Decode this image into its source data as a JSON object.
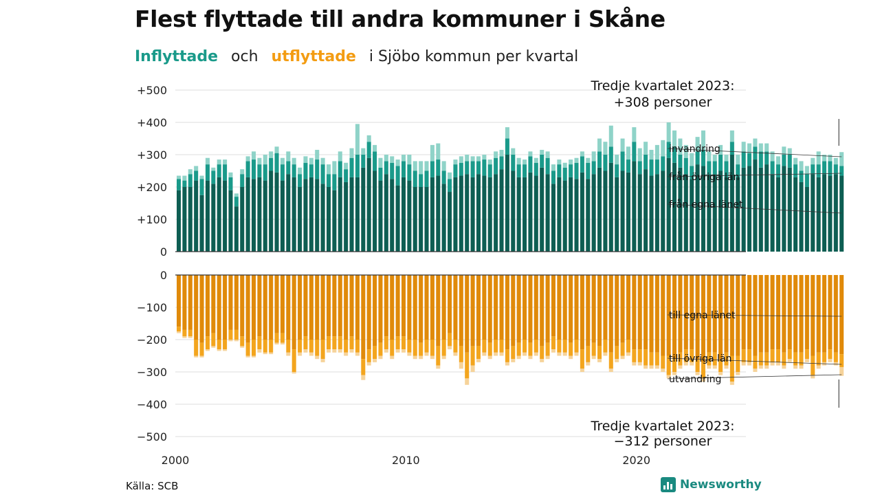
{
  "title": "Flest flyttade till andra kommuner i Skåne",
  "subtitle": {
    "inflow_word": "Inflyttade",
    "connector": "och",
    "outflow_word": "utflyttade",
    "rest": "i Sjöbo  kommun  per  kvartal"
  },
  "source": "Källa: SCB",
  "logo_text": "Newsworthy",
  "colors": {
    "in_own": "#0e5e53",
    "in_other": "#1a9a8a",
    "in_abroad": "#8fd3c8",
    "out_own": "#e08a0a",
    "out_other": "#f3a51e",
    "out_abroad": "#f6d39a",
    "grid": "#dddddd",
    "axis": "#333333"
  },
  "chart_data": {
    "type": "bar",
    "stacked": true,
    "x_start": 2000,
    "periods_per_year": 4,
    "xticks": [
      2000,
      2010,
      2020
    ],
    "xtick_labels": [
      "2000",
      "2010",
      "2020"
    ],
    "top_panel": {
      "ylim": [
        0,
        500
      ],
      "yticks": [
        0,
        100,
        200,
        300,
        400,
        500
      ],
      "ytick_labels": [
        "0",
        "+100",
        "+200",
        "+300",
        "+400",
        "+500"
      ],
      "annotation": [
        "Tredje kvartalet 2023:",
        "+308 personer"
      ],
      "series": [
        {
          "name": "från egna länet",
          "values": [
            190,
            200,
            200,
            220,
            175,
            220,
            210,
            230,
            220,
            190,
            140,
            200,
            230,
            225,
            230,
            220,
            250,
            245,
            220,
            240,
            230,
            200,
            225,
            230,
            225,
            210,
            200,
            190,
            230,
            215,
            230,
            230,
            260,
            290,
            250,
            220,
            240,
            225,
            205,
            230,
            220,
            200,
            200,
            200,
            230,
            235,
            210,
            185,
            230,
            235,
            240,
            230,
            240,
            235,
            230,
            240,
            255,
            300,
            250,
            230,
            230,
            245,
            235,
            260,
            240,
            210,
            230,
            220,
            230,
            225,
            245,
            225,
            240,
            260,
            250,
            275,
            230,
            250,
            245,
            280,
            240,
            255,
            235,
            240,
            250,
            290,
            275,
            260,
            240,
            225,
            270,
            265,
            240,
            240,
            250,
            230,
            300,
            230,
            260,
            265,
            285,
            260,
            270,
            240,
            230,
            265,
            260,
            230,
            215,
            200,
            240,
            230,
            240,
            235,
            240,
            235
          ]
        },
        {
          "name": "från övriga län",
          "values": [
            35,
            20,
            40,
            30,
            50,
            50,
            40,
            40,
            50,
            40,
            30,
            40,
            50,
            60,
            40,
            50,
            40,
            60,
            50,
            40,
            40,
            40,
            50,
            40,
            60,
            60,
            40,
            50,
            50,
            40,
            60,
            70,
            40,
            50,
            60,
            40,
            40,
            50,
            60,
            50,
            50,
            50,
            40,
            50,
            50,
            50,
            40,
            40,
            40,
            40,
            40,
            50,
            40,
            50,
            40,
            50,
            40,
            50,
            50,
            40,
            40,
            50,
            40,
            40,
            50,
            40,
            40,
            40,
            40,
            50,
            50,
            50,
            40,
            50,
            50,
            50,
            40,
            60,
            40,
            60,
            40,
            45,
            50,
            45,
            45,
            50,
            50,
            40,
            50,
            40,
            40,
            50,
            40,
            40,
            50,
            50,
            40,
            40,
            50,
            40,
            40,
            50,
            40,
            40,
            40,
            35,
            40,
            40,
            35,
            40,
            30,
            40,
            40,
            45,
            30,
            30
          ]
        },
        {
          "name": "invandring",
          "values": [
            10,
            15,
            15,
            15,
            10,
            20,
            10,
            15,
            15,
            15,
            10,
            15,
            15,
            25,
            20,
            30,
            20,
            20,
            20,
            30,
            20,
            20,
            20,
            20,
            30,
            20,
            30,
            40,
            30,
            20,
            30,
            95,
            20,
            20,
            20,
            30,
            20,
            20,
            20,
            20,
            30,
            30,
            40,
            30,
            50,
            50,
            30,
            20,
            15,
            20,
            20,
            15,
            15,
            15,
            15,
            20,
            20,
            35,
            20,
            20,
            15,
            15,
            15,
            15,
            20,
            20,
            15,
            15,
            15,
            15,
            15,
            15,
            30,
            40,
            40,
            65,
            30,
            40,
            40,
            45,
            40,
            40,
            30,
            45,
            50,
            60,
            50,
            50,
            40,
            40,
            45,
            60,
            30,
            20,
            30,
            20,
            35,
            30,
            30,
            30,
            25,
            25,
            25,
            30,
            25,
            25,
            20,
            20,
            30,
            25,
            20,
            40,
            20,
            20,
            20,
            43
          ]
        }
      ],
      "series_labels": [
        "invandring",
        "från övriga län",
        "från egna länet"
      ]
    },
    "bottom_panel": {
      "ylim": [
        -500,
        0
      ],
      "yticks": [
        0,
        -100,
        -200,
        -300,
        -400,
        -500
      ],
      "ytick_labels": [
        "0",
        "−100",
        "−200",
        "−300",
        "−400",
        "−500"
      ],
      "annotation": [
        "Tredje kvartalet 2023:",
        "−312 personer"
      ],
      "series": [
        {
          "name": "till egna länet",
          "values": [
            -160,
            -170,
            -170,
            -200,
            -210,
            -190,
            -180,
            -200,
            -200,
            -170,
            -170,
            -190,
            -210,
            -200,
            -190,
            -200,
            -200,
            -180,
            -180,
            -200,
            -230,
            -200,
            -190,
            -200,
            -200,
            -200,
            -190,
            -190,
            -190,
            -200,
            -190,
            -200,
            -260,
            -230,
            -220,
            -210,
            -190,
            -200,
            -190,
            -190,
            -200,
            -200,
            -210,
            -200,
            -200,
            -220,
            -200,
            -180,
            -200,
            -220,
            -240,
            -220,
            -220,
            -200,
            -210,
            -200,
            -200,
            -230,
            -220,
            -210,
            -200,
            -210,
            -200,
            -220,
            -210,
            -190,
            -200,
            -200,
            -210,
            -200,
            -230,
            -220,
            -210,
            -220,
            -200,
            -240,
            -220,
            -210,
            -200,
            -230,
            -230,
            -230,
            -240,
            -240,
            -250,
            -250,
            -260,
            -240,
            -230,
            -230,
            -260,
            -270,
            -240,
            -240,
            -260,
            -240,
            -250,
            -250,
            -230,
            -230,
            -250,
            -240,
            -240,
            -230,
            -230,
            -240,
            -230,
            -240,
            -240,
            -230,
            -250,
            -240,
            -240,
            -230,
            -240,
            -245
          ]
        },
        {
          "name": "till övriga län",
          "values": [
            -15,
            -20,
            -20,
            -50,
            -40,
            -40,
            -40,
            -30,
            -30,
            -30,
            -30,
            -30,
            -40,
            -50,
            -40,
            -40,
            -40,
            -30,
            -30,
            -40,
            -70,
            -40,
            -40,
            -40,
            -50,
            -60,
            -40,
            -40,
            -40,
            -40,
            -40,
            -40,
            -50,
            -40,
            -40,
            -40,
            -40,
            -50,
            -40,
            -40,
            -40,
            -50,
            -40,
            -40,
            -50,
            -60,
            -50,
            -40,
            -40,
            -50,
            -80,
            -60,
            -40,
            -40,
            -40,
            -40,
            -40,
            -40,
            -40,
            -40,
            -40,
            -40,
            -40,
            -40,
            -40,
            -40,
            -40,
            -40,
            -40,
            -40,
            -60,
            -50,
            -40,
            -40,
            -40,
            -50,
            -40,
            -40,
            -40,
            -40,
            -40,
            -50,
            -40,
            -40,
            -40,
            -60,
            -40,
            -40,
            -40,
            -40,
            -40,
            -50,
            -40,
            -40,
            -40,
            -40,
            -80,
            -50,
            -40,
            -40,
            -40,
            -40,
            -40,
            -40,
            -40,
            -40,
            -30,
            -40,
            -40,
            -30,
            -60,
            -40,
            -30,
            -30,
            -30,
            -40
          ]
        },
        {
          "name": "utvandring",
          "values": [
            -5,
            -5,
            -5,
            -5,
            -5,
            -5,
            -5,
            -5,
            -5,
            -5,
            -5,
            -5,
            -5,
            -5,
            -10,
            -5,
            -5,
            -5,
            -5,
            -10,
            -5,
            -10,
            -10,
            -10,
            -10,
            -10,
            -10,
            -10,
            -10,
            -10,
            -10,
            -10,
            -15,
            -10,
            -10,
            -10,
            -10,
            -10,
            -10,
            -10,
            -10,
            -10,
            -10,
            -10,
            -10,
            -10,
            -10,
            -10,
            -10,
            -20,
            -20,
            -20,
            -10,
            -10,
            -10,
            -10,
            -10,
            -10,
            -10,
            -10,
            -10,
            -10,
            -10,
            -10,
            -10,
            -10,
            -10,
            -10,
            -10,
            -10,
            -10,
            -10,
            -10,
            -10,
            -10,
            -10,
            -10,
            -10,
            -10,
            -10,
            -10,
            -10,
            -10,
            -10,
            -10,
            -10,
            -10,
            -10,
            -10,
            -10,
            -10,
            -10,
            -10,
            -10,
            -10,
            -10,
            -10,
            -10,
            -10,
            -10,
            -10,
            -10,
            -10,
            -10,
            -10,
            -10,
            -10,
            -10,
            -10,
            -10,
            -10,
            -10,
            -10,
            -10,
            -10,
            -27
          ]
        }
      ],
      "series_labels": [
        "till egna länet",
        "till övriga län",
        "utvandring"
      ]
    }
  }
}
